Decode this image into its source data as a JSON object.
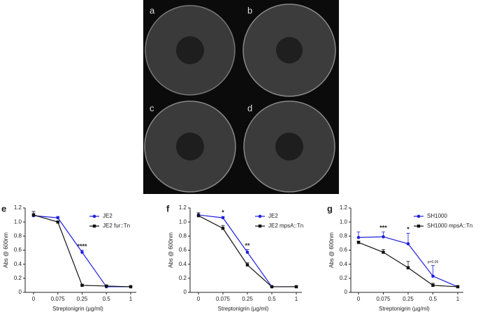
{
  "photo": {
    "labels": [
      "a",
      "b",
      "c",
      "d"
    ]
  },
  "chart_data": [
    {
      "type": "line",
      "panel": "e",
      "xlabel": "Streptonigrin (µg/ml)",
      "ylabel": "Abs @ 600nm",
      "categories": [
        "0",
        "0.075",
        "0.25",
        "0.5",
        "1"
      ],
      "ylim": [
        0,
        1.2
      ],
      "yticks": [
        0,
        0.2,
        0.4,
        0.6,
        0.8,
        {
          "value": 1,
          "label": "1.0"
        },
        1.2
      ],
      "series": [
        {
          "name": "JE2",
          "color": "#1f1fe0",
          "marker": "circle",
          "values": [
            1.09,
            1.06,
            0.57,
            0.08,
            0.08
          ],
          "errors": [
            0.03,
            0.02,
            0.03,
            0.01,
            0.01
          ]
        },
        {
          "name": "JE2 fur::Tn",
          "color": "#111111",
          "marker": "square",
          "values": [
            1.1,
            1.0,
            0.1,
            0.09,
            0.08
          ],
          "errors": [
            0.05,
            0.01,
            0.01,
            0.01,
            0.01
          ]
        }
      ],
      "annotations": [
        {
          "text": "****",
          "category": "0.25"
        }
      ]
    },
    {
      "type": "line",
      "panel": "f",
      "xlabel": "Streptonigrin (µg/ml)",
      "ylabel": "Abs @ 600nm",
      "categories": [
        "0",
        "0.075",
        "0.25",
        "0.5",
        "1"
      ],
      "ylim": [
        0,
        1.2
      ],
      "yticks": [
        0,
        0.2,
        0.4,
        0.6,
        0.8,
        {
          "value": 1,
          "label": "1.0"
        },
        1.2
      ],
      "series": [
        {
          "name": "JE2",
          "color": "#1f1fe0",
          "marker": "circle",
          "values": [
            1.1,
            1.06,
            0.57,
            0.08,
            0.08
          ],
          "errors": [
            0.03,
            0.02,
            0.04,
            0.01,
            0.01
          ]
        },
        {
          "name": "JE2 mpsA::Tn",
          "color": "#111111",
          "marker": "square",
          "values": [
            1.09,
            0.91,
            0.39,
            0.08,
            0.08
          ],
          "errors": [
            0.04,
            0.04,
            0.03,
            0.01,
            0.01
          ]
        }
      ],
      "annotations": [
        {
          "text": "*",
          "category": "0.075"
        },
        {
          "text": "**",
          "category": "0.25"
        }
      ]
    },
    {
      "type": "line",
      "panel": "g",
      "xlabel": "Streptonigrin (µg/ml)",
      "ylabel": "Abs @ 600nm",
      "categories": [
        "0",
        "0.075",
        "0.25",
        "0.5",
        "1"
      ],
      "ylim": [
        0,
        1.2
      ],
      "yticks": [
        0,
        0.2,
        0.4,
        0.6,
        0.8,
        {
          "value": 1,
          "label": "1.0"
        },
        1.2
      ],
      "series": [
        {
          "name": "SH1000",
          "color": "#1f1fe0",
          "marker": "circle",
          "values": [
            0.78,
            0.79,
            0.69,
            0.23,
            0.08
          ],
          "errors": [
            0.08,
            0.07,
            0.15,
            0.15,
            0.01
          ]
        },
        {
          "name": "SH1000 mpsA::Tn",
          "color": "#111111",
          "marker": "square",
          "values": [
            0.71,
            0.57,
            0.35,
            0.1,
            0.08
          ],
          "errors": [
            0.02,
            0.04,
            0.09,
            0.03,
            0.01
          ]
        }
      ],
      "annotations": [
        {
          "text": "***",
          "category": "0.075"
        },
        {
          "text": "*",
          "category": "0.25"
        },
        {
          "text": "p=0.09",
          "category": "0.5"
        }
      ]
    }
  ]
}
